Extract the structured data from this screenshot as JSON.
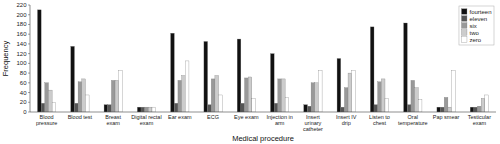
{
  "chart_data": {
    "type": "bar",
    "xlabel": "Medical procedure",
    "ylabel": "Frequency",
    "categories": [
      "Blood\npressure",
      "Blood test",
      "Breast\nexam",
      "Digital rectal\nexam",
      "Ear exam",
      "ECG",
      "Eye exam",
      "Injection in\narm",
      "Insert\nurinary\ncatheter",
      "Insert IV\ndrip",
      "Listen to\nchest",
      "Oral\ntemperature",
      "Pap smear",
      "Testicular\nexam"
    ],
    "series": [
      {
        "name": "fourteen",
        "color": "#111111",
        "values": [
          210,
          135,
          15,
          10,
          162,
          145,
          150,
          120,
          15,
          110,
          175,
          183,
          10,
          10
        ]
      },
      {
        "name": "eleven",
        "color": "#555555",
        "values": [
          18,
          18,
          15,
          10,
          18,
          15,
          18,
          18,
          12,
          10,
          15,
          15,
          10,
          10
        ]
      },
      {
        "name": "six",
        "color": "#999999",
        "values": [
          60,
          62,
          65,
          10,
          65,
          68,
          70,
          68,
          60,
          50,
          62,
          65,
          30,
          12
        ]
      },
      {
        "name": "two",
        "color": "#cccccc",
        "values": [
          45,
          68,
          65,
          10,
          75,
          75,
          72,
          68,
          60,
          80,
          68,
          50,
          10,
          28
        ]
      },
      {
        "name": "zero",
        "color": "#ffffff",
        "values": [
          20,
          35,
          85,
          10,
          105,
          35,
          28,
          30,
          85,
          85,
          28,
          25,
          85,
          35
        ]
      }
    ],
    "ylim": [
      0,
      220
    ],
    "yticks": [
      0,
      20,
      40,
      60,
      80,
      100,
      120,
      140,
      160,
      180,
      200,
      220
    ],
    "grid": false,
    "legend": "upper right"
  }
}
